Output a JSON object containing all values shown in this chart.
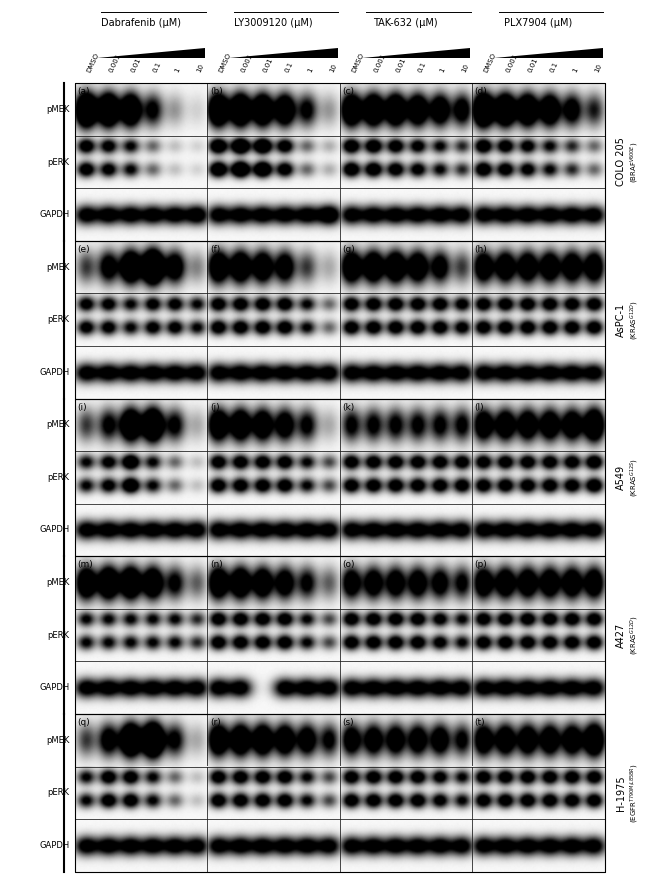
{
  "drug_labels": [
    "Dabrafenib (μM)",
    "LY3009120 (μM)",
    "TAK-632 (μM)",
    "PLX7904 (μM)"
  ],
  "conc_labels": [
    "DMSO",
    "0.001",
    "0.01",
    "0.1",
    "1",
    "10"
  ],
  "panel_letters": [
    [
      "(a)",
      "(b)",
      "(c)",
      "(d)"
    ],
    [
      "(e)",
      "(f)",
      "(g)",
      "(h)"
    ],
    [
      "(i)",
      "(j)",
      "(k)",
      "(l)"
    ],
    [
      "(m)",
      "(n)",
      "(o)",
      "(p)"
    ],
    [
      "(q)",
      "(r)",
      "(s)",
      "(t)"
    ]
  ],
  "row_labels": [
    "COLO 205",
    "AsPC-1",
    "A549",
    "A427",
    "H-1975"
  ],
  "row_sublabels": [
    "(BRAF$^{V600E}$)",
    "(KRAS$^{G12D}$)",
    "(KRAS$^{G12S}$)",
    "(KRAS$^{G12D}$)",
    "(EGFR$^{T790M/L858R}$)"
  ],
  "band_labels": [
    "pMEK",
    "pERK",
    "GAPDH"
  ],
  "blot_data": {
    "0,0": {
      "pMEK": [
        3.5,
        3.2,
        2.8,
        1.5,
        0.5,
        0.2
      ],
      "pERK": [
        2.0,
        1.8,
        1.5,
        0.8,
        0.3,
        0.2
      ],
      "GAPDH": [
        2.0,
        2.0,
        2.0,
        2.0,
        2.0,
        2.2
      ]
    },
    "0,1": {
      "pMEK": [
        3.0,
        3.0,
        2.8,
        2.5,
        1.5,
        0.5
      ],
      "pERK": [
        2.5,
        3.0,
        2.8,
        2.0,
        0.8,
        0.4
      ],
      "GAPDH": [
        2.0,
        2.0,
        2.0,
        2.0,
        2.0,
        2.5
      ]
    },
    "0,2": {
      "pMEK": [
        2.8,
        2.8,
        2.8,
        2.5,
        2.2,
        1.8
      ],
      "pERK": [
        2.2,
        2.2,
        2.0,
        1.8,
        1.5,
        1.2
      ],
      "GAPDH": [
        2.0,
        2.0,
        2.0,
        2.0,
        2.0,
        2.0
      ]
    },
    "0,3": {
      "pMEK": [
        3.5,
        3.0,
        2.8,
        2.5,
        1.8,
        1.2
      ],
      "pERK": [
        2.2,
        2.0,
        1.8,
        1.5,
        1.2,
        0.8
      ],
      "GAPDH": [
        2.0,
        2.0,
        2.0,
        2.0,
        2.0,
        2.0
      ]
    },
    "1,0": {
      "pMEK": [
        1.0,
        1.8,
        2.8,
        3.8,
        2.0,
        0.6
      ],
      "pERK": [
        1.8,
        1.8,
        1.5,
        1.8,
        1.8,
        1.5
      ],
      "GAPDH": [
        2.0,
        2.0,
        2.0,
        2.0,
        2.0,
        2.0
      ]
    },
    "1,1": {
      "pMEK": [
        2.5,
        2.5,
        2.3,
        2.0,
        1.0,
        0.4
      ],
      "pERK": [
        2.0,
        2.0,
        2.0,
        2.0,
        1.5,
        0.8
      ],
      "GAPDH": [
        2.0,
        2.0,
        2.0,
        2.0,
        2.0,
        2.0
      ]
    },
    "1,2": {
      "pMEK": [
        2.5,
        2.5,
        2.5,
        2.3,
        1.8,
        1.0
      ],
      "pERK": [
        2.0,
        2.0,
        2.0,
        2.0,
        2.0,
        1.8
      ],
      "GAPDH": [
        2.0,
        2.0,
        2.0,
        2.0,
        2.0,
        2.0
      ]
    },
    "1,3": {
      "pMEK": [
        2.2,
        2.2,
        2.2,
        2.2,
        2.2,
        2.2
      ],
      "pERK": [
        2.0,
        2.0,
        2.0,
        2.0,
        2.0,
        2.0
      ],
      "GAPDH": [
        2.0,
        2.0,
        2.0,
        2.0,
        2.0,
        2.0
      ]
    },
    "2,0": {
      "pMEK": [
        1.0,
        1.5,
        2.8,
        3.2,
        1.5,
        0.4
      ],
      "pERK": [
        1.5,
        1.8,
        2.5,
        1.5,
        0.8,
        0.3
      ],
      "GAPDH": [
        2.0,
        2.0,
        2.0,
        2.0,
        2.0,
        2.0
      ]
    },
    "2,1": {
      "pMEK": [
        2.5,
        2.5,
        2.3,
        2.0,
        1.5,
        0.4
      ],
      "pERK": [
        2.0,
        2.0,
        2.0,
        2.0,
        1.5,
        1.0
      ],
      "GAPDH": [
        2.0,
        2.0,
        2.0,
        2.0,
        2.0,
        2.0
      ]
    },
    "2,2": {
      "pMEK": [
        1.5,
        1.5,
        1.5,
        1.5,
        1.5,
        1.5
      ],
      "pERK": [
        2.0,
        2.0,
        2.0,
        2.0,
        2.0,
        2.0
      ],
      "GAPDH": [
        2.0,
        2.0,
        2.0,
        2.0,
        2.0,
        2.0
      ]
    },
    "2,3": {
      "pMEK": [
        2.2,
        2.2,
        2.2,
        2.2,
        2.2,
        2.8
      ],
      "pERK": [
        2.0,
        2.0,
        2.0,
        2.0,
        2.0,
        2.2
      ],
      "GAPDH": [
        2.0,
        2.0,
        2.0,
        2.0,
        2.0,
        2.0
      ]
    },
    "3,0": {
      "pMEK": [
        2.5,
        2.8,
        2.8,
        2.5,
        1.5,
        0.8
      ],
      "pERK": [
        1.5,
        1.5,
        1.5,
        1.5,
        1.5,
        1.2
      ],
      "GAPDH": [
        2.0,
        2.0,
        2.0,
        2.0,
        2.0,
        2.0
      ]
    },
    "3,1": {
      "pMEK": [
        2.5,
        2.5,
        2.3,
        2.0,
        1.5,
        0.8
      ],
      "pERK": [
        2.0,
        2.0,
        2.0,
        2.0,
        1.5,
        1.0
      ],
      "GAPDH": [
        2.0,
        2.0,
        0.0,
        2.0,
        2.0,
        2.0
      ]
    },
    "3,2": {
      "pMEK": [
        2.0,
        2.0,
        2.0,
        2.0,
        1.8,
        1.5
      ],
      "pERK": [
        2.0,
        2.0,
        2.0,
        2.0,
        1.8,
        1.5
      ],
      "GAPDH": [
        2.0,
        2.0,
        2.0,
        2.0,
        2.0,
        2.0
      ]
    },
    "3,3": {
      "pMEK": [
        2.2,
        2.2,
        2.2,
        2.2,
        2.2,
        2.2
      ],
      "pERK": [
        2.0,
        2.0,
        2.0,
        2.0,
        2.0,
        2.0
      ],
      "GAPDH": [
        2.0,
        2.0,
        2.0,
        2.0,
        2.0,
        2.0
      ]
    },
    "4,0": {
      "pMEK": [
        1.0,
        1.8,
        3.2,
        3.8,
        1.5,
        0.4
      ],
      "pERK": [
        1.5,
        2.0,
        2.0,
        1.5,
        0.8,
        0.3
      ],
      "GAPDH": [
        2.0,
        2.0,
        2.0,
        2.0,
        2.0,
        2.0
      ]
    },
    "4,1": {
      "pMEK": [
        2.5,
        2.5,
        2.5,
        2.3,
        2.0,
        1.5
      ],
      "pERK": [
        2.0,
        2.0,
        2.0,
        2.0,
        1.5,
        1.0
      ],
      "GAPDH": [
        2.0,
        2.0,
        2.0,
        2.0,
        2.0,
        2.0
      ]
    },
    "4,2": {
      "pMEK": [
        2.0,
        2.0,
        2.0,
        2.0,
        2.0,
        1.5
      ],
      "pERK": [
        2.0,
        2.0,
        2.0,
        2.0,
        1.8,
        1.5
      ],
      "GAPDH": [
        2.0,
        2.0,
        2.0,
        2.0,
        2.0,
        2.0
      ]
    },
    "4,3": {
      "pMEK": [
        2.2,
        2.2,
        2.2,
        2.2,
        2.2,
        2.8
      ],
      "pERK": [
        2.0,
        2.0,
        2.0,
        2.0,
        2.0,
        2.0
      ],
      "GAPDH": [
        2.0,
        2.0,
        2.0,
        2.0,
        2.0,
        2.0
      ]
    }
  }
}
